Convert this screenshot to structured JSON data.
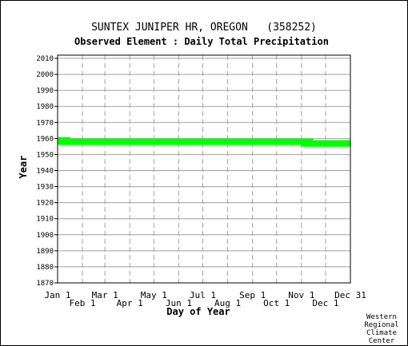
{
  "chart_data": {
    "type": "area",
    "title": "SUNTEX JUNIPER HR, OREGON   (358252)",
    "subtitle": "Observed Element : Daily Total Precipitation",
    "xlabel": "Day of Year",
    "ylabel": "Year",
    "ylim": [
      1870,
      2012
    ],
    "y_ticks": [
      "1870",
      "1880",
      "1890",
      "1900",
      "1910",
      "1920",
      "1930",
      "1940",
      "1950",
      "1960",
      "1970",
      "1980",
      "1990",
      "2000",
      "2010"
    ],
    "x_ticks_top_row": [
      "Jan 1",
      "Mar 1",
      "May 1",
      "Jul 1",
      "Sep 1",
      "Nov 1",
      "Dec 31"
    ],
    "x_ticks_bottom_row": [
      "Feb 1",
      "Apr 1",
      "Jun 1",
      "Aug 1",
      "Oct 1",
      "Dec 1"
    ],
    "grid": true,
    "series": [
      {
        "color": "#00ff00",
        "segments": [
          {
            "day_start": 1,
            "day_end": 17,
            "year_start": 1956.0,
            "year_end": 1960.9
          },
          {
            "day_start": 17,
            "day_end": 305,
            "year_start": 1956.0,
            "year_end": 1960.0
          },
          {
            "day_start": 305,
            "day_end": 320,
            "year_start": 1954.9,
            "year_end": 1960.0
          },
          {
            "day_start": 320,
            "day_end": 366,
            "year_start": 1954.9,
            "year_end": 1959.0
          }
        ]
      }
    ]
  },
  "credit": {
    "line1": "Western",
    "line2": "Regional",
    "line3": "Climate",
    "line4": "Center"
  }
}
